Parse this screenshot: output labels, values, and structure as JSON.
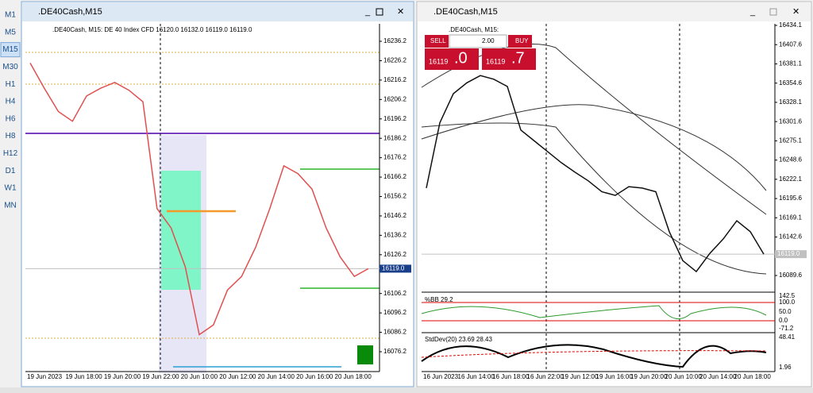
{
  "toolbar": {
    "timeframes": [
      "M1",
      "M5",
      "M15",
      "M30",
      "H1",
      "H4",
      "H6",
      "H8",
      "H12",
      "D1",
      "W1",
      "MN"
    ],
    "active": "M15"
  },
  "windows": [
    {
      "title": ".DE40Cash,M15",
      "info": ".DE40Cash, M15:  DE 40 Index CFD  16120.0 16132.0 16119.0 16119.0",
      "ylim": [
        16076.2,
        16236.2
      ],
      "yticks": [
        16236.2,
        16226.2,
        16216.2,
        16206.2,
        16196.2,
        16186.2,
        16176.2,
        16166.2,
        16156.2,
        16146.2,
        16136.2,
        16126.2,
        16106.2,
        16096.2,
        16086.2,
        16076.2
      ],
      "current_price": {
        "value": 16119,
        "label": "16119.0"
      },
      "time_labels": [
        "19 Jun 2023",
        "19 Jun 18:00",
        "19 Jun 20:00",
        "19 Jun 22:00",
        "20 Jun 10:00",
        "20 Jun 12:00",
        "20 Jun 14:00",
        "20 Jun 16:00",
        "20 Jun 18:00"
      ],
      "close": [
        16225,
        16212,
        16200,
        16195,
        16208,
        16212,
        16215,
        16211,
        16205,
        16150,
        16140,
        16120,
        16085,
        16090,
        16108,
        16115,
        16130,
        16150,
        16172,
        16168,
        16160,
        16140,
        16125,
        16115,
        16119
      ]
    },
    {
      "title": ".DE40Cash,M15",
      "info": ".DE40Cash, M15:",
      "ylim": [
        16089.6,
        16434.1
      ],
      "yticks": [
        16434.1,
        16407.6,
        16381.1,
        16354.6,
        16328.1,
        16301.6,
        16275.1,
        16248.6,
        16222.1,
        16195.6,
        16169.1,
        16142.6,
        16089.6
      ],
      "current_price": {
        "value": 16119,
        "label": "16119.0"
      },
      "time_labels": [
        "16 Jun 2023",
        "16 Jun 14:00",
        "16 Jun 18:00",
        "16 Jun 22:00",
        "19 Jun 12:00",
        "19 Jun 16:00",
        "19 Jun 20:00",
        "20 Jun 10:00",
        "20 Jun 14:00",
        "20 Jun 18:00"
      ],
      "close": [
        16210,
        16300,
        16340,
        16355,
        16365,
        16360,
        16350,
        16290,
        16275,
        16260,
        16245,
        16232,
        16220,
        16205,
        16200,
        16212,
        16210,
        16205,
        16150,
        16110,
        16095,
        16120,
        16140,
        16165,
        16150,
        16119
      ],
      "trade": {
        "sell": "SELL",
        "lot": "2.00",
        "buy": "BUY",
        "bid_main": "16119",
        "bid_frac": ".0",
        "ask_main": "16119",
        "ask_frac": ".7"
      },
      "bb": {
        "label": "%BB 29.2",
        "ticks": [
          "142.5",
          "100.0",
          "50.0",
          "0.0",
          "-71.2"
        ]
      },
      "stddev": {
        "label": "StdDev(20) 23.69 28.43",
        "ticks": [
          "48.41",
          "1.96"
        ]
      }
    }
  ]
}
